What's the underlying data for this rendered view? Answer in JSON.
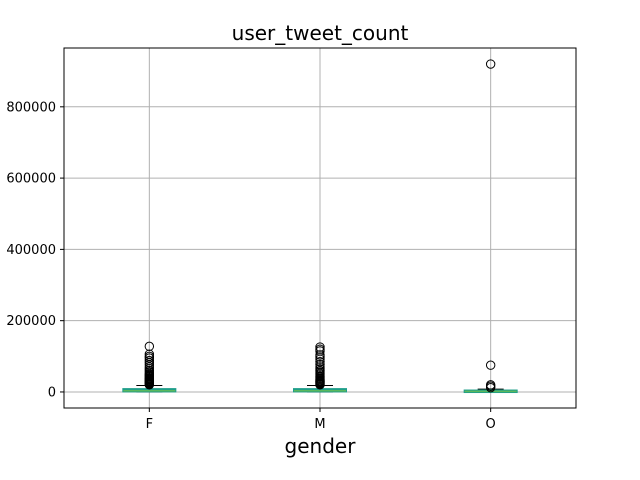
{
  "chart_data": {
    "type": "box",
    "title": "user_tweet_count",
    "xlabel": "gender",
    "ylabel": "",
    "ylim": [
      -45000,
      965000
    ],
    "yticks": [
      0,
      200000,
      400000,
      600000,
      800000
    ],
    "ytick_labels": [
      "0",
      "200000",
      "400000",
      "600000",
      "800000"
    ],
    "categories": [
      "F",
      "M",
      "O"
    ],
    "grid": true,
    "boxes": [
      {
        "name": "F",
        "whisker_low": 0,
        "q1": 1500,
        "median": 3500,
        "q3": 8000,
        "whisker_high": 18000,
        "outliers": [
          20000,
          22000,
          24000,
          26000,
          28000,
          30000,
          32000,
          34000,
          36000,
          38000,
          40000,
          43000,
          46000,
          49000,
          52000,
          56000,
          60000,
          65000,
          70000,
          76000,
          82000,
          88000,
          95000,
          100000,
          106000,
          128000
        ]
      },
      {
        "name": "M",
        "whisker_low": 0,
        "q1": 1500,
        "median": 3500,
        "q3": 8000,
        "whisker_high": 18000,
        "outliers": [
          20000,
          22000,
          24000,
          26000,
          28000,
          30000,
          32000,
          35000,
          38000,
          41000,
          44000,
          48000,
          52000,
          56000,
          60000,
          65000,
          70000,
          77000,
          85000,
          92000,
          98000,
          104000,
          115000,
          120000,
          126000
        ]
      },
      {
        "name": "O",
        "whisker_low": 0,
        "q1": 500,
        "median": 1500,
        "q3": 4000,
        "whisker_high": 8000,
        "outliers": [
          12000,
          16000,
          20000,
          75000,
          920000
        ]
      }
    ],
    "colors": {
      "box": "#1f9e89",
      "median": "#5cb85c",
      "whisker": "#000000",
      "grid": "#b0b0b0",
      "outlier": "#000000"
    }
  }
}
